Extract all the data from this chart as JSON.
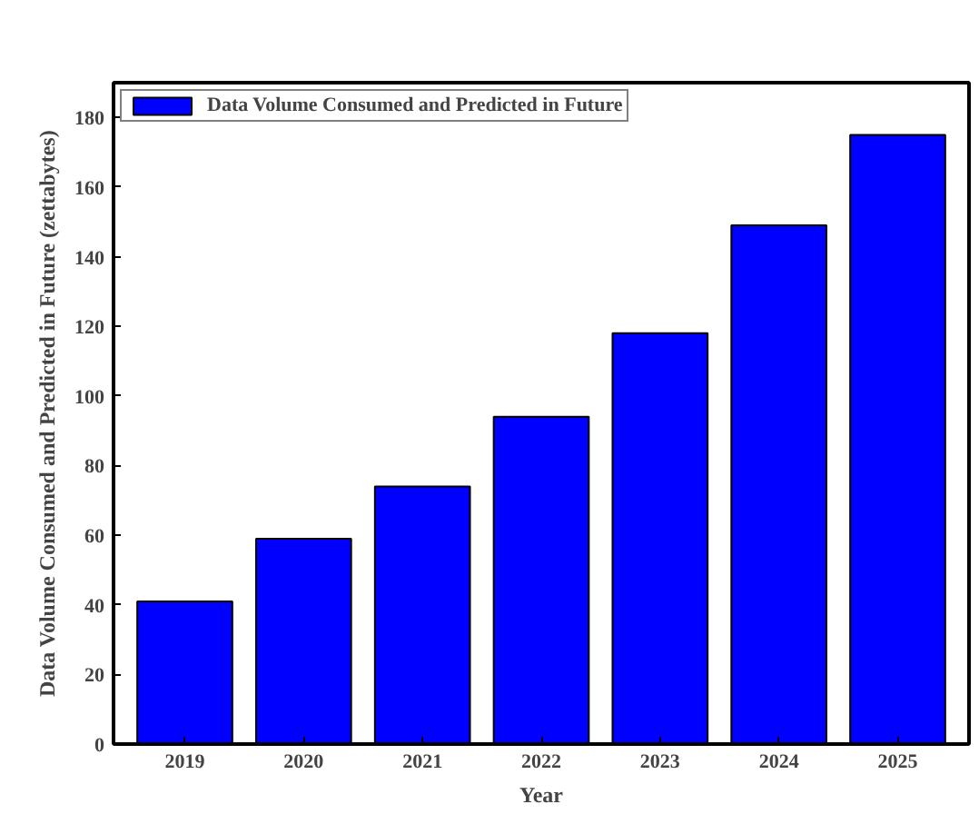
{
  "chart_data": {
    "type": "bar",
    "xlabel": "Year",
    "ylabel": "Data Volume Consumed and Predicted in Future (zettabytes)",
    "categories": [
      "2019",
      "2020",
      "2021",
      "2022",
      "2023",
      "2024",
      "2025"
    ],
    "series": [
      {
        "name": "Data Volume Consumed and Predicted in Future",
        "color": "#0000ff",
        "values": [
          41,
          59,
          74,
          94,
          118,
          149,
          175
        ]
      }
    ],
    "ylim": [
      0,
      190
    ],
    "yticks": [
      0,
      20,
      40,
      60,
      80,
      100,
      120,
      140,
      160,
      180
    ],
    "grid": false,
    "legend": "top left"
  }
}
